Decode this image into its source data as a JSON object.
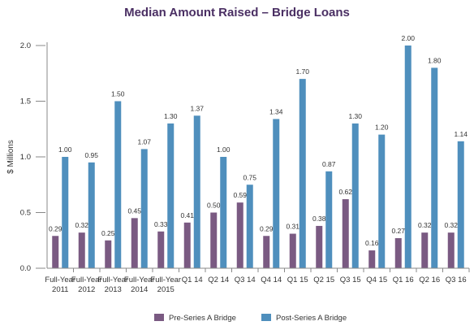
{
  "chart_data": {
    "type": "bar",
    "title": "Median Amount Raised – Bridge Loans",
    "xlabel": "",
    "ylabel": "$ Millions",
    "ylim": [
      0,
      2.0
    ],
    "yticks": [
      "0.0",
      "0.5",
      "1.0",
      "1.5",
      "2.0"
    ],
    "grid": false,
    "legend_position": "bottom",
    "categories": [
      [
        "Full-Year",
        "2011"
      ],
      [
        "Full-Year",
        "2012"
      ],
      [
        "Full-Year",
        "2013"
      ],
      [
        "Full-Year",
        "2014"
      ],
      [
        "Full-Year",
        "2015"
      ],
      [
        "Q1 14"
      ],
      [
        "Q2 14"
      ],
      [
        "Q3 14"
      ],
      [
        "Q4 14"
      ],
      [
        "Q1 15"
      ],
      [
        "Q2 15"
      ],
      [
        "Q3 15"
      ],
      [
        "Q4 15"
      ],
      [
        "Q1 16"
      ],
      [
        "Q2 16"
      ],
      [
        "Q3 16"
      ]
    ],
    "series": [
      {
        "name": "Pre-Series A Bridge",
        "color": "#7a5a82",
        "values": [
          0.29,
          0.32,
          0.25,
          0.45,
          0.33,
          0.41,
          0.5,
          0.59,
          0.29,
          0.31,
          0.38,
          0.62,
          0.16,
          0.27,
          0.32,
          0.32
        ],
        "labels": [
          "0.29",
          "0.32",
          "0.25",
          "0.45",
          "0.33",
          "0.41",
          "0.50",
          "0.59",
          "0.29",
          "0.31",
          "0.38",
          "0.62",
          "0.16",
          "0.27",
          "0.32",
          "0.32"
        ]
      },
      {
        "name": "Post-Series A Bridge",
        "color": "#4f8fbd",
        "values": [
          1.0,
          0.95,
          1.5,
          1.07,
          1.3,
          1.37,
          1.0,
          0.75,
          1.34,
          1.7,
          0.87,
          1.3,
          1.2,
          2.0,
          1.8,
          1.14
        ],
        "labels": [
          "1.00",
          "0.95",
          "1.50",
          "1.07",
          "1.30",
          "1.37",
          "1.00",
          "0.75",
          "1.34",
          "1.70",
          "0.87",
          "1.30",
          "1.20",
          "2.00",
          "1.80",
          "1.14"
        ]
      }
    ]
  }
}
